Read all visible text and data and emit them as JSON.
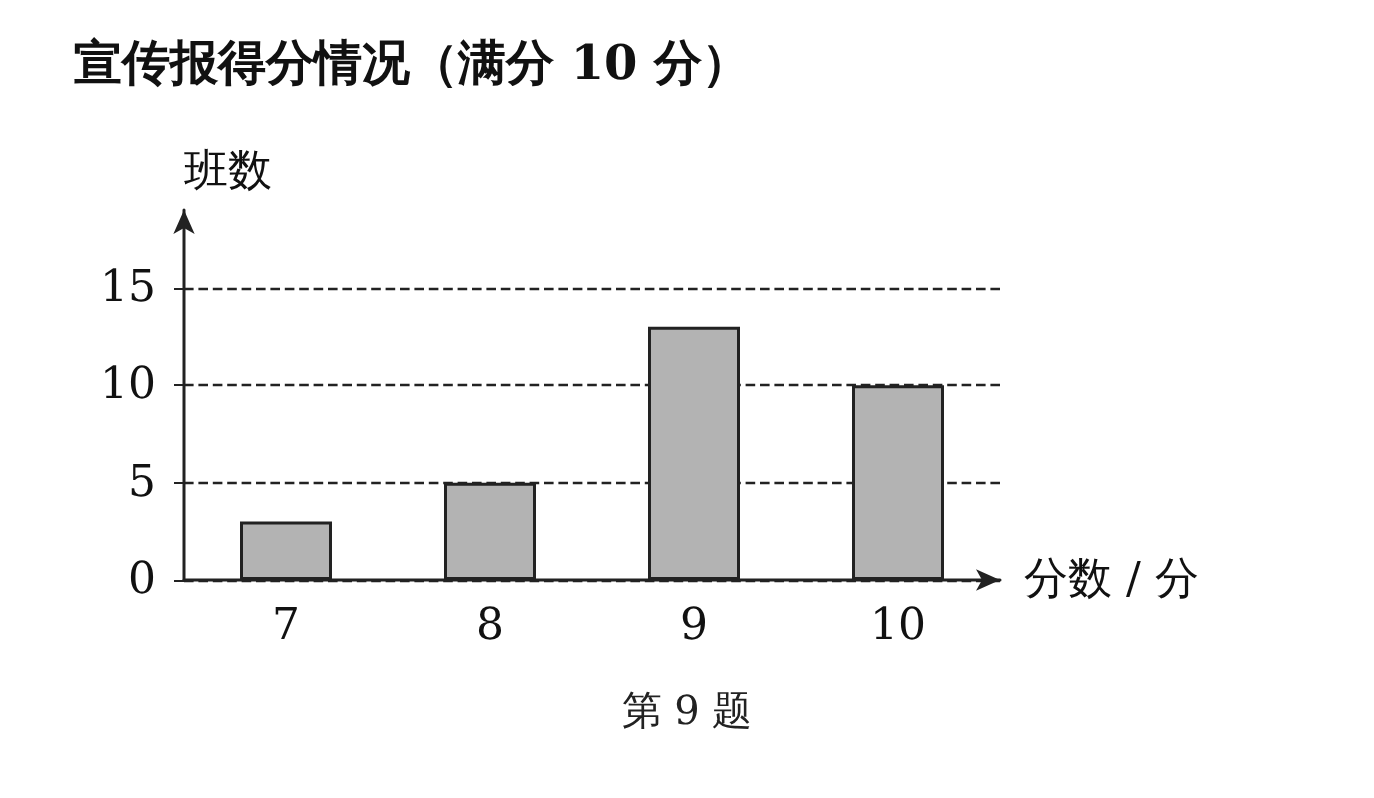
{
  "chart_data": {
    "type": "bar",
    "title": "宣传报得分情况（满分 10 分）",
    "xlabel": "分数 / 分",
    "ylabel": "班数",
    "annotations": [
      "第 9 题"
    ],
    "categories": [
      "7",
      "8",
      "9",
      "10"
    ],
    "values": [
      3,
      5,
      13,
      10
    ],
    "color": "#b3b3b3",
    "ylim": [
      0,
      19
    ],
    "yticks": [
      0,
      5,
      10,
      15
    ],
    "grid": "y"
  }
}
